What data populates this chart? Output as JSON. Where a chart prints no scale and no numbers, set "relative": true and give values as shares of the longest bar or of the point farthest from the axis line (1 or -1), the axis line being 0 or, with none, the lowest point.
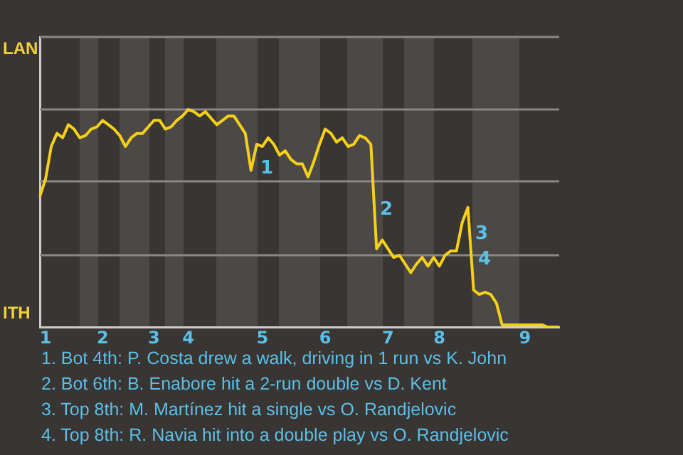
{
  "chart_data": {
    "type": "line",
    "relative": true,
    "categories": [
      null,
      "1",
      null,
      null,
      null,
      null,
      null,
      null,
      null,
      null,
      null,
      "2",
      null,
      null,
      null,
      null,
      null,
      null,
      null,
      null,
      "3",
      null,
      null,
      null,
      null,
      null,
      "4",
      null,
      null,
      null,
      null,
      null,
      null,
      null,
      null,
      null,
      null,
      null,
      null,
      "5",
      null,
      null,
      null,
      null,
      null,
      null,
      null,
      null,
      null,
      null,
      "6",
      null,
      null,
      null,
      null,
      null,
      null,
      null,
      null,
      null,
      null,
      "7",
      null,
      null,
      null,
      null,
      null,
      null,
      null,
      null,
      "8",
      null,
      null,
      null,
      null,
      null,
      null,
      null,
      null,
      null,
      null,
      null,
      null,
      null,
      null,
      "9",
      null,
      null,
      null,
      null,
      null,
      null
    ],
    "series": [
      {
        "color": "#f5d01a",
        "values": [
          0.6,
          0.68,
          0.83,
          0.89,
          0.87,
          0.93,
          0.91,
          0.87,
          0.88,
          0.91,
          0.92,
          0.95,
          0.93,
          0.91,
          0.88,
          0.83,
          0.87,
          0.89,
          0.89,
          0.92,
          0.95,
          0.95,
          0.91,
          0.92,
          0.95,
          0.97,
          1,
          0.99,
          0.97,
          0.99,
          0.96,
          0.93,
          0.95,
          0.97,
          0.97,
          0.93,
          0.89,
          0.72,
          0.84,
          0.83,
          0.87,
          0.84,
          0.79,
          0.81,
          0.77,
          0.75,
          0.75,
          0.69,
          0.76,
          0.84,
          0.91,
          0.89,
          0.85,
          0.87,
          0.83,
          0.84,
          0.88,
          0.87,
          0.84,
          0.36,
          0.4,
          0.36,
          0.32,
          0.33,
          0.29,
          0.25,
          0.29,
          0.32,
          0.28,
          0.32,
          0.28,
          0.33,
          0.35,
          0.35,
          0.48,
          0.55,
          0.17,
          0.15,
          0.16,
          0.15,
          0.11,
          0.01,
          0.01,
          0.01,
          0.01,
          0.01,
          0.01,
          0.01,
          0.01,
          0,
          0,
          0
        ]
      }
    ],
    "ref_lines": [
      {
        "axis": "y",
        "value": 0.33,
        "color": "#8a8784"
      },
      {
        "axis": "y",
        "value": 0.67,
        "color": "#8a8784"
      },
      {
        "axis": "y",
        "value": 1,
        "color": "#8a8784"
      }
    ],
    "annotations": [
      "LAN",
      "ITH",
      "1",
      "2",
      "3",
      "4",
      "1. Bot 4th: P. Costa drew a walk, driving in 1 run vs K. John",
      "2. Bot 6th: B. Enabore hit a 2-run double vs D. Kent",
      "3. Top 8th: M. Martínez hit a single vs O. Randjelovic",
      "4. Top 8th: R. Navia hit into a double play vs O. Randjelovic"
    ]
  }
}
